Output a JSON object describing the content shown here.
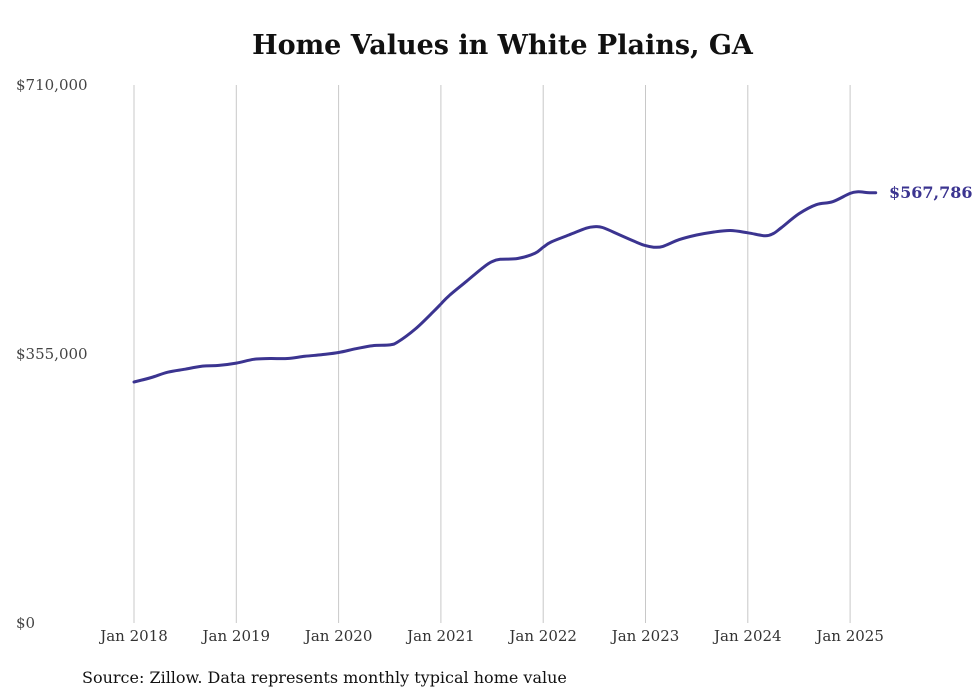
{
  "chart_data": {
    "type": "line",
    "title": "Home Values in White Plains, GA",
    "source": "Source: Zillow. Data represents monthly typical home value",
    "xlabel": "",
    "ylabel": "",
    "ylim": [
      0,
      710000
    ],
    "y_ticks": [
      {
        "value": 0,
        "label": "$0"
      },
      {
        "value": 355000,
        "label": "$355,000"
      },
      {
        "value": 710000,
        "label": "$710,000"
      }
    ],
    "x_ticks": [
      {
        "value": 2018.0,
        "label": "Jan 2018"
      },
      {
        "value": 2019.0,
        "label": "Jan 2019"
      },
      {
        "value": 2020.0,
        "label": "Jan 2020"
      },
      {
        "value": 2021.0,
        "label": "Jan 2021"
      },
      {
        "value": 2022.0,
        "label": "Jan 2022"
      },
      {
        "value": 2023.0,
        "label": "Jan 2023"
      },
      {
        "value": 2024.0,
        "label": "Jan 2024"
      },
      {
        "value": 2025.0,
        "label": "Jan 2025"
      }
    ],
    "xlim": [
      2018.0,
      2025.25
    ],
    "grid": "vertical",
    "line_color": "#3b3490",
    "end_label": "$567,786",
    "series": [
      {
        "points": [
          [
            2018.0,
            318000
          ],
          [
            2018.17,
            324000
          ],
          [
            2018.33,
            331000
          ],
          [
            2018.5,
            335000
          ],
          [
            2018.67,
            339000
          ],
          [
            2018.83,
            340000
          ],
          [
            2019.0,
            343000
          ],
          [
            2019.17,
            348000
          ],
          [
            2019.33,
            349000
          ],
          [
            2019.5,
            349000
          ],
          [
            2019.67,
            352000
          ],
          [
            2019.83,
            354000
          ],
          [
            2020.0,
            357000
          ],
          [
            2020.17,
            362000
          ],
          [
            2020.33,
            366000
          ],
          [
            2020.5,
            367000
          ],
          [
            2020.58,
            371000
          ],
          [
            2020.75,
            388000
          ],
          [
            2020.92,
            410000
          ],
          [
            2021.0,
            421000
          ],
          [
            2021.08,
            432000
          ],
          [
            2021.25,
            451000
          ],
          [
            2021.42,
            470000
          ],
          [
            2021.5,
            477000
          ],
          [
            2021.58,
            480000
          ],
          [
            2021.75,
            481000
          ],
          [
            2021.92,
            488000
          ],
          [
            2022.0,
            496000
          ],
          [
            2022.08,
            503000
          ],
          [
            2022.25,
            512000
          ],
          [
            2022.42,
            521000
          ],
          [
            2022.5,
            523000
          ],
          [
            2022.58,
            522000
          ],
          [
            2022.75,
            512000
          ],
          [
            2022.92,
            502000
          ],
          [
            2023.0,
            498000
          ],
          [
            2023.08,
            496000
          ],
          [
            2023.17,
            497000
          ],
          [
            2023.33,
            506000
          ],
          [
            2023.5,
            512000
          ],
          [
            2023.67,
            516000
          ],
          [
            2023.83,
            518000
          ],
          [
            2024.0,
            515000
          ],
          [
            2024.17,
            511000
          ],
          [
            2024.25,
            514000
          ],
          [
            2024.33,
            522000
          ],
          [
            2024.5,
            540000
          ],
          [
            2024.67,
            552000
          ],
          [
            2024.83,
            556000
          ],
          [
            2025.0,
            567000
          ],
          [
            2025.08,
            569000
          ],
          [
            2025.17,
            568000
          ],
          [
            2025.25,
            567786
          ]
        ]
      }
    ]
  }
}
